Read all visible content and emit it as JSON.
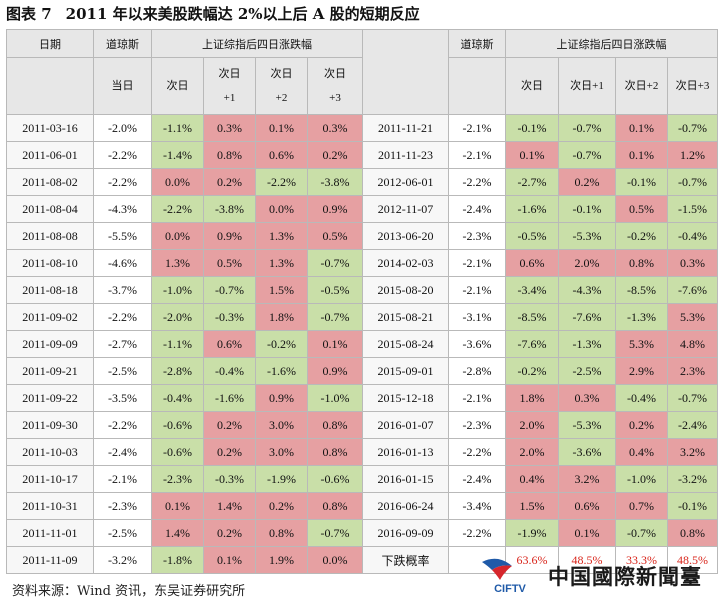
{
  "title": {
    "fig_no": "图表 7",
    "text": "2011 年以来美股跌幅达 2%以上后 A 股的短期反应"
  },
  "header": {
    "date": "日期",
    "dow": "道琼斯",
    "sh_group": "上证综指后四日涨跌幅",
    "col_day0": "当日",
    "left_cols": [
      [
        "次日"
      ],
      [
        "次日",
        "+1"
      ],
      [
        "次日",
        "+2"
      ],
      [
        "次日",
        "+3"
      ]
    ],
    "right_cols": [
      "次日",
      "次日+1",
      "次日+2",
      "次日+3"
    ]
  },
  "rows_left": [
    {
      "date": "2011-03-16",
      "dow": "-2.0%",
      "v": [
        "-1.1%",
        "0.3%",
        "0.1%",
        "0.3%"
      ]
    },
    {
      "date": "2011-06-01",
      "dow": "-2.2%",
      "v": [
        "-1.4%",
        "0.8%",
        "0.6%",
        "0.2%"
      ]
    },
    {
      "date": "2011-08-02",
      "dow": "-2.2%",
      "v": [
        "0.0%",
        "0.2%",
        "-2.2%",
        "-3.8%"
      ]
    },
    {
      "date": "2011-08-04",
      "dow": "-4.3%",
      "v": [
        "-2.2%",
        "-3.8%",
        "0.0%",
        "0.9%"
      ]
    },
    {
      "date": "2011-08-08",
      "dow": "-5.5%",
      "v": [
        "0.0%",
        "0.9%",
        "1.3%",
        "0.5%"
      ]
    },
    {
      "date": "2011-08-10",
      "dow": "-4.6%",
      "v": [
        "1.3%",
        "0.5%",
        "1.3%",
        "-0.7%"
      ]
    },
    {
      "date": "2011-08-18",
      "dow": "-3.7%",
      "v": [
        "-1.0%",
        "-0.7%",
        "1.5%",
        "-0.5%"
      ]
    },
    {
      "date": "2011-09-02",
      "dow": "-2.2%",
      "v": [
        "-2.0%",
        "-0.3%",
        "1.8%",
        "-0.7%"
      ]
    },
    {
      "date": "2011-09-09",
      "dow": "-2.7%",
      "v": [
        "-1.1%",
        "0.6%",
        "-0.2%",
        "0.1%"
      ]
    },
    {
      "date": "2011-09-21",
      "dow": "-2.5%",
      "v": [
        "-2.8%",
        "-0.4%",
        "-1.6%",
        "0.9%"
      ]
    },
    {
      "date": "2011-09-22",
      "dow": "-3.5%",
      "v": [
        "-0.4%",
        "-1.6%",
        "0.9%",
        "-1.0%"
      ]
    },
    {
      "date": "2011-09-30",
      "dow": "-2.2%",
      "v": [
        "-0.6%",
        "0.2%",
        "3.0%",
        "0.8%"
      ]
    },
    {
      "date": "2011-10-03",
      "dow": "-2.4%",
      "v": [
        "-0.6%",
        "0.2%",
        "3.0%",
        "0.8%"
      ]
    },
    {
      "date": "2011-10-17",
      "dow": "-2.1%",
      "v": [
        "-2.3%",
        "-0.3%",
        "-1.9%",
        "-0.6%"
      ]
    },
    {
      "date": "2011-10-31",
      "dow": "-2.3%",
      "v": [
        "0.1%",
        "1.4%",
        "0.2%",
        "0.8%"
      ]
    },
    {
      "date": "2011-11-01",
      "dow": "-2.5%",
      "v": [
        "1.4%",
        "0.2%",
        "0.8%",
        "-0.7%"
      ]
    },
    {
      "date": "2011-11-09",
      "dow": "-3.2%",
      "v": [
        "-1.8%",
        "0.1%",
        "1.9%",
        "0.0%"
      ]
    }
  ],
  "rows_right": [
    {
      "date": "2011-11-21",
      "dow": "-2.1%",
      "v": [
        "-0.1%",
        "-0.7%",
        "0.1%",
        "-0.7%"
      ]
    },
    {
      "date": "2011-11-23",
      "dow": "-2.1%",
      "v": [
        "0.1%",
        "-0.7%",
        "0.1%",
        "1.2%"
      ]
    },
    {
      "date": "2012-06-01",
      "dow": "-2.2%",
      "v": [
        "-2.7%",
        "0.2%",
        "-0.1%",
        "-0.7%"
      ]
    },
    {
      "date": "2012-11-07",
      "dow": "-2.4%",
      "v": [
        "-1.6%",
        "-0.1%",
        "0.5%",
        "-1.5%"
      ]
    },
    {
      "date": "2013-06-20",
      "dow": "-2.3%",
      "v": [
        "-0.5%",
        "-5.3%",
        "-0.2%",
        "-0.4%"
      ]
    },
    {
      "date": "2014-02-03",
      "dow": "-2.1%",
      "v": [
        "0.6%",
        "2.0%",
        "0.8%",
        "0.3%"
      ]
    },
    {
      "date": "2015-08-20",
      "dow": "-2.1%",
      "v": [
        "-3.4%",
        "-4.3%",
        "-8.5%",
        "-7.6%"
      ]
    },
    {
      "date": "2015-08-21",
      "dow": "-3.1%",
      "v": [
        "-8.5%",
        "-7.6%",
        "-1.3%",
        "5.3%"
      ]
    },
    {
      "date": "2015-08-24",
      "dow": "-3.6%",
      "v": [
        "-7.6%",
        "-1.3%",
        "5.3%",
        "4.8%"
      ]
    },
    {
      "date": "2015-09-01",
      "dow": "-2.8%",
      "v": [
        "-0.2%",
        "-2.5%",
        "2.9%",
        "2.3%"
      ]
    },
    {
      "date": "2015-12-18",
      "dow": "-2.1%",
      "v": [
        "1.8%",
        "0.3%",
        "-0.4%",
        "-0.7%"
      ]
    },
    {
      "date": "2016-01-07",
      "dow": "-2.3%",
      "v": [
        "2.0%",
        "-5.3%",
        "0.2%",
        "-2.4%"
      ]
    },
    {
      "date": "2016-01-13",
      "dow": "-2.2%",
      "v": [
        "2.0%",
        "-3.6%",
        "0.4%",
        "3.2%"
      ]
    },
    {
      "date": "2016-01-15",
      "dow": "-2.4%",
      "v": [
        "0.4%",
        "3.2%",
        "-1.0%",
        "-3.2%"
      ]
    },
    {
      "date": "2016-06-24",
      "dow": "-3.4%",
      "v": [
        "1.5%",
        "0.6%",
        "0.7%",
        "-0.1%"
      ]
    },
    {
      "date": "2016-09-09",
      "dow": "-2.2%",
      "v": [
        "-1.9%",
        "0.1%",
        "-0.7%",
        "0.8%"
      ]
    },
    {
      "label": "下跌概率",
      "rates": [
        "63.6%",
        "48.5%",
        "33.3%",
        "48.5%"
      ]
    }
  ],
  "source": "资料来源：Wind 资讯，东吴证券研究所",
  "watermark": {
    "logo_text": "CIFTV",
    "name": "中国國際新聞臺"
  },
  "colors": {
    "positive": "#e6a0a2",
    "negative": "#c9dfa8",
    "header": "#e7e7e7",
    "rate_text": "#d9261c"
  }
}
